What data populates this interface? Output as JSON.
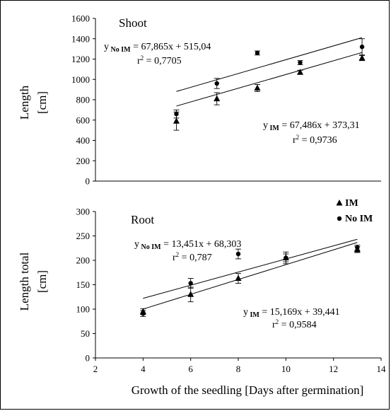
{
  "chart_data": [
    {
      "type": "scatter",
      "title": "Shoot",
      "ylabel_lines": [
        "Length",
        "[cm]"
      ],
      "xlim": [
        2,
        14
      ],
      "ylim": [
        0,
        1600
      ],
      "y_ticks": [
        0,
        200,
        400,
        600,
        800,
        1000,
        1200,
        1400,
        1600
      ],
      "series": [
        {
          "name": "IM",
          "marker": "triangle",
          "points": [
            {
              "x": 5.4,
              "y": 590,
              "err": 90
            },
            {
              "x": 7.1,
              "y": 810,
              "err": 60
            },
            {
              "x": 8.8,
              "y": 915,
              "err": 35
            },
            {
              "x": 10.6,
              "y": 1070,
              "err": 20
            },
            {
              "x": 13.2,
              "y": 1210,
              "err": 25
            }
          ],
          "fit": {
            "slope": 67.486,
            "intercept": 373.31,
            "x_range": [
              5.4,
              13.2
            ]
          },
          "equation": {
            "y": "y",
            "sub": "IM",
            "rest": " = 67,486x + 373,31",
            "r2": "0,9736"
          }
        },
        {
          "name": "No IM",
          "marker": "circle",
          "points": [
            {
              "x": 5.4,
              "y": 660,
              "err": 40
            },
            {
              "x": 7.1,
              "y": 960,
              "err": 50
            },
            {
              "x": 8.8,
              "y": 1260,
              "err": 20
            },
            {
              "x": 10.6,
              "y": 1165,
              "err": 20
            },
            {
              "x": 13.2,
              "y": 1320,
              "err": 80
            }
          ],
          "fit": {
            "slope": 67.865,
            "intercept": 515.04,
            "x_range": [
              5.4,
              13.2
            ]
          },
          "equation": {
            "y": "y",
            "sub": "No IM",
            "rest": " = 67,865x + 515,04",
            "r2": "0,7705"
          }
        }
      ]
    },
    {
      "type": "scatter",
      "title": "Root",
      "ylabel_lines": [
        "Length total",
        "[cm]"
      ],
      "xlabel": "Growth of the seedling [Days after germination]",
      "xlim": [
        2,
        14
      ],
      "ylim": [
        0,
        300
      ],
      "x_ticks": [
        2,
        4,
        6,
        8,
        10,
        12,
        14
      ],
      "y_ticks": [
        0,
        50,
        100,
        150,
        200,
        250,
        300
      ],
      "legend": {
        "position": "top-right",
        "entries": [
          "IM",
          "No IM"
        ]
      },
      "series": [
        {
          "name": "IM",
          "marker": "triangle",
          "points": [
            {
              "x": 4,
              "y": 95,
              "err": 6
            },
            {
              "x": 6,
              "y": 130,
              "err": 15
            },
            {
              "x": 8,
              "y": 163,
              "err": 10
            },
            {
              "x": 10,
              "y": 205,
              "err": 8
            },
            {
              "x": 13,
              "y": 222,
              "err": 6
            }
          ],
          "fit": {
            "slope": 15.169,
            "intercept": 39.441,
            "x_range": [
              4,
              13
            ]
          },
          "equation": {
            "y": "y",
            "sub": "IM",
            "rest": " = 15,169x + 39,441",
            "r2": "0,9584"
          }
        },
        {
          "name": "No IM",
          "marker": "circle",
          "points": [
            {
              "x": 4,
              "y": 91,
              "err": 6
            },
            {
              "x": 6,
              "y": 153,
              "err": 10
            },
            {
              "x": 8,
              "y": 213,
              "err": 10
            },
            {
              "x": 10,
              "y": 205,
              "err": 12
            },
            {
              "x": 13,
              "y": 226,
              "err": 5
            }
          ],
          "fit": {
            "slope": 13.451,
            "intercept": 68.303,
            "x_range": [
              4,
              13
            ]
          },
          "equation": {
            "y": "y",
            "sub": "No IM",
            "rest": " = 13,451x + 68,303",
            "r2": "0,787"
          }
        }
      ]
    }
  ]
}
